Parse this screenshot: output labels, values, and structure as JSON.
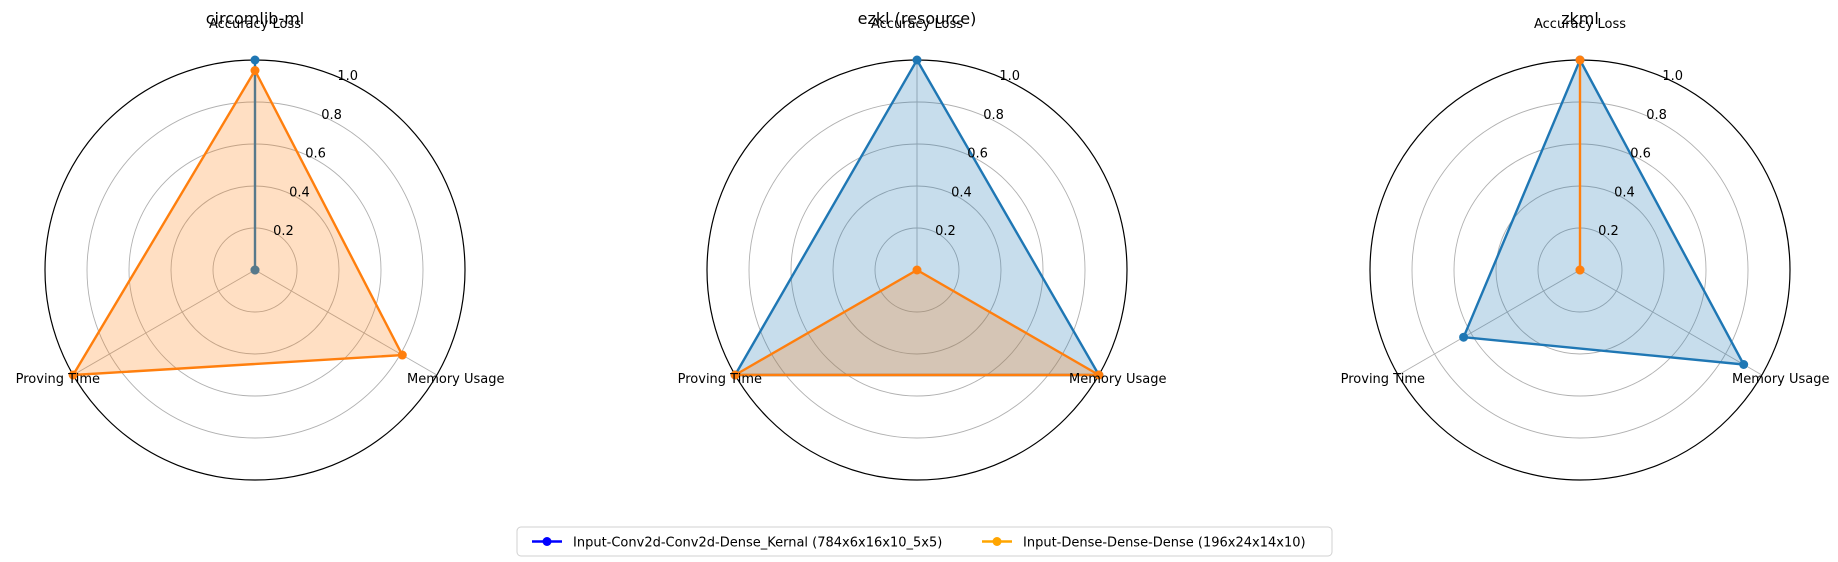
{
  "chart_data": [
    {
      "type": "radar",
      "title": "circomlib-ml",
      "axes": [
        "Accuracy Loss",
        "Memory Usage",
        "Proving Time"
      ],
      "rlim": [
        0,
        1.0
      ],
      "rticks": [
        "0.2",
        "0.4",
        "0.6",
        "0.8",
        "1.0"
      ],
      "grid": true,
      "series": [
        {
          "name": "Input-Conv2d-Conv2d-Dense_Kernal (784x6x16x10_5x5)",
          "values": [
            1.0,
            0.0,
            0.0
          ]
        },
        {
          "name": "Input-Dense-Dense-Dense (196x24x14x10)",
          "values": [
            0.95,
            0.81,
            1.0
          ]
        }
      ]
    },
    {
      "type": "radar",
      "title": "ezkl (resource)",
      "axes": [
        "Accuracy Loss",
        "Memory Usage",
        "Proving Time"
      ],
      "rlim": [
        0,
        1.0
      ],
      "rticks": [
        "0.2",
        "0.4",
        "0.6",
        "0.8",
        "1.0"
      ],
      "grid": true,
      "series": [
        {
          "name": "Input-Conv2d-Conv2d-Dense_Kernal (784x6x16x10_5x5)",
          "values": [
            1.0,
            1.0,
            1.0
          ]
        },
        {
          "name": "Input-Dense-Dense-Dense (196x24x14x10)",
          "values": [
            0.0,
            1.0,
            1.0
          ]
        }
      ]
    },
    {
      "type": "radar",
      "title": "zkml",
      "axes": [
        "Accuracy Loss",
        "Memory Usage",
        "Proving Time"
      ],
      "rlim": [
        0,
        1.0
      ],
      "rticks": [
        "0.2",
        "0.4",
        "0.6",
        "0.8",
        "1.0"
      ],
      "grid": true,
      "series": [
        {
          "name": "Input-Conv2d-Conv2d-Dense_Kernal (784x6x16x10_5x5)",
          "values": [
            1.0,
            0.9,
            0.64
          ]
        },
        {
          "name": "Input-Dense-Dense-Dense (196x24x14x10)",
          "values": [
            1.0,
            0.0,
            0.0
          ]
        }
      ]
    }
  ],
  "legend": {
    "placement": "bottom-center",
    "items": [
      {
        "label": "Input-Conv2d-Conv2d-Dense_Kernal (784x6x16x10_5x5)",
        "color": "#0000ff"
      },
      {
        "label": "Input-Dense-Dense-Dense (196x24x14x10)",
        "color": "#ffa500"
      }
    ]
  },
  "colors": {
    "series_line": [
      "#1f77b4",
      "#ff7f0e"
    ],
    "grid": "#b0b0b0",
    "frame": "#000000"
  }
}
